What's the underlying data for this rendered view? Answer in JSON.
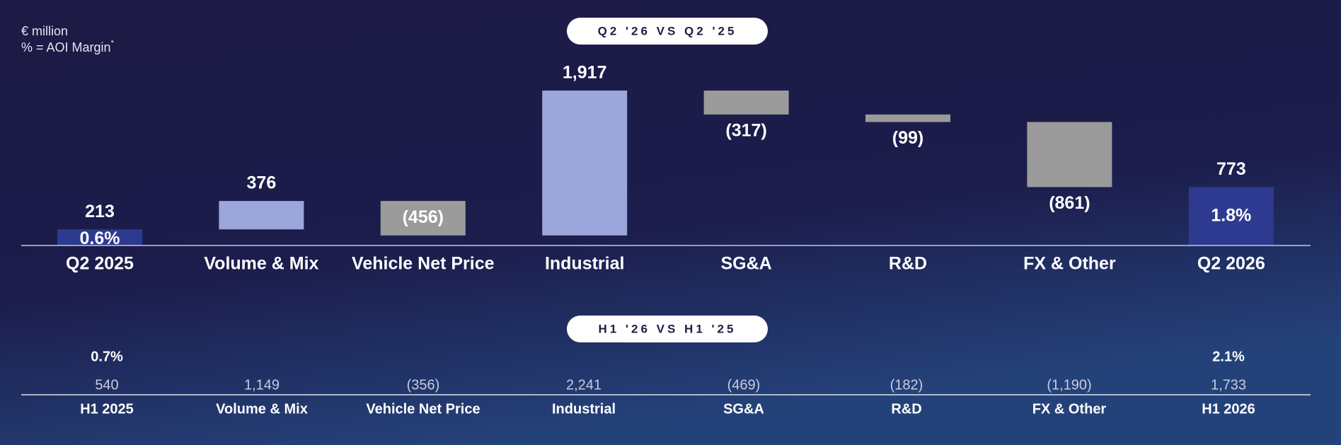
{
  "header": {
    "unit": "€ million",
    "note": "% = AOI Margin",
    "note_mark": "*"
  },
  "chart_data": {
    "type": "waterfall",
    "title": "Q2 '26 VS Q2 '25",
    "categories": [
      "Q2 2025",
      "Volume & Mix",
      "Vehicle Net Price",
      "Industrial",
      "SG&A",
      "R&D",
      "FX & Other",
      "Q2 2026"
    ],
    "values": [
      213,
      376,
      -456,
      1917,
      -317,
      -99,
      -861,
      773
    ],
    "value_labels": [
      "213",
      "376",
      "(456)",
      "1,917",
      "(317)",
      "(99)",
      "(861)",
      "773"
    ],
    "margin_labels": [
      "0.6%",
      null,
      null,
      null,
      null,
      null,
      null,
      "1.8%"
    ],
    "colors": {
      "total": "#2e3a8f",
      "increase": "#9ba6da",
      "decrease": "#9b9b9b"
    }
  },
  "table": {
    "title": "H1 '26 VS H1 '25",
    "margins": [
      "0.7%",
      null,
      null,
      null,
      null,
      null,
      null,
      "2.1%"
    ],
    "values": [
      "540",
      "1,149",
      "(356)",
      "2,241",
      "(469)",
      "(182)",
      "(1,190)",
      "1,733"
    ],
    "labels": [
      "H1 2025",
      "Volume & Mix",
      "Vehicle Net Price",
      "Industrial",
      "SG&A",
      "R&D",
      "FX & Other",
      "H1 2026"
    ]
  }
}
